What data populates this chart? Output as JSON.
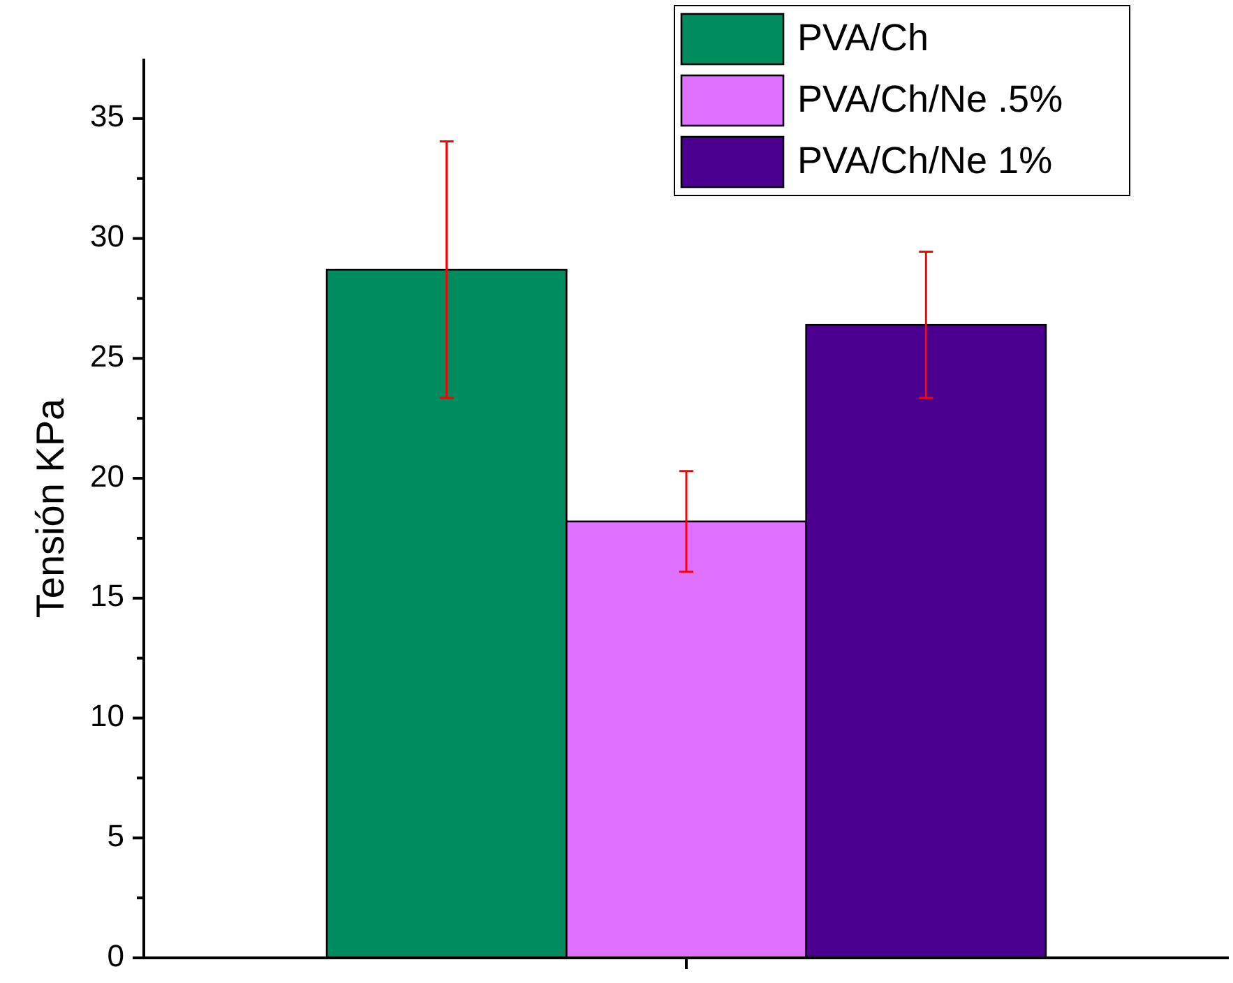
{
  "chart_data": {
    "type": "bar",
    "ylabel": "Tensión KPa",
    "categories": [
      null
    ],
    "series": [
      {
        "name": "PVA/Ch",
        "color": "#008c5f",
        "values": [
          28.7
        ],
        "errors": [
          5.35
        ]
      },
      {
        "name": "PVA/Ch/Ne .5%",
        "color": "#e070ff",
        "values": [
          18.2
        ],
        "errors": [
          2.1
        ]
      },
      {
        "name": "PVA/Ch/Ne 1%",
        "color": "#4b0090",
        "values": [
          26.4
        ],
        "errors": [
          3.05
        ]
      }
    ],
    "ylim": [
      0,
      37.5
    ],
    "yticks": [
      0,
      {
        "value": 2.5,
        "label": null
      },
      5,
      {
        "value": 7.5,
        "label": null
      },
      10,
      {
        "value": 12.5,
        "label": null
      },
      15,
      {
        "value": 17.5,
        "label": null
      },
      20,
      {
        "value": 22.5,
        "label": null
      },
      25,
      {
        "value": 27.5,
        "label": null
      },
      30,
      {
        "value": 32.5,
        "label": null
      },
      35
    ],
    "legend": "top right",
    "grid": false
  }
}
